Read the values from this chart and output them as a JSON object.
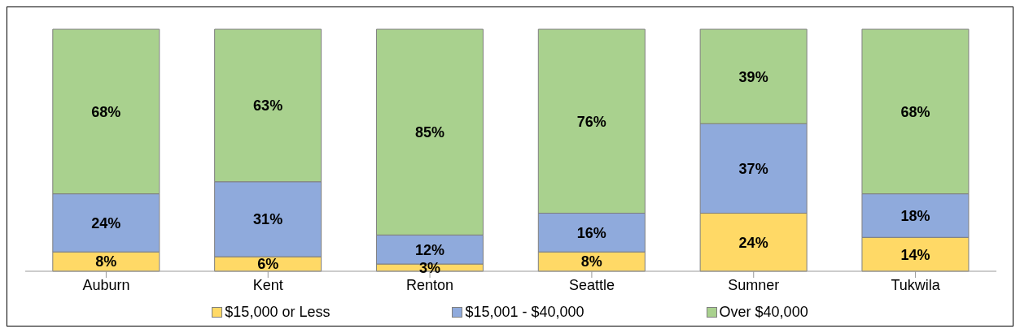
{
  "chart_data": {
    "type": "bar",
    "stacked": true,
    "categories": [
      "Auburn",
      "Kent",
      "Renton",
      "Seattle",
      "Sumner",
      "Tukwila"
    ],
    "series": [
      {
        "name": "$15,000 or Less",
        "color": "#ffd966",
        "values": [
          8,
          6,
          3,
          8,
          24,
          14
        ],
        "value_labels": [
          "8%",
          "6%",
          "3%",
          "8%",
          "24%",
          "14%"
        ]
      },
      {
        "name": "$15,001 - $40,000",
        "color": "#8faadc",
        "values": [
          24,
          31,
          12,
          16,
          37,
          18
        ],
        "value_labels": [
          "24%",
          "31%",
          "12%",
          "16%",
          "37%",
          "18%"
        ]
      },
      {
        "name": "Over $40,000",
        "color": "#a9d18e",
        "values": [
          68,
          63,
          85,
          76,
          39,
          68
        ],
        "value_labels": [
          "68%",
          "63%",
          "85%",
          "76%",
          "39%",
          "68%"
        ]
      }
    ],
    "legend": "bottom"
  }
}
